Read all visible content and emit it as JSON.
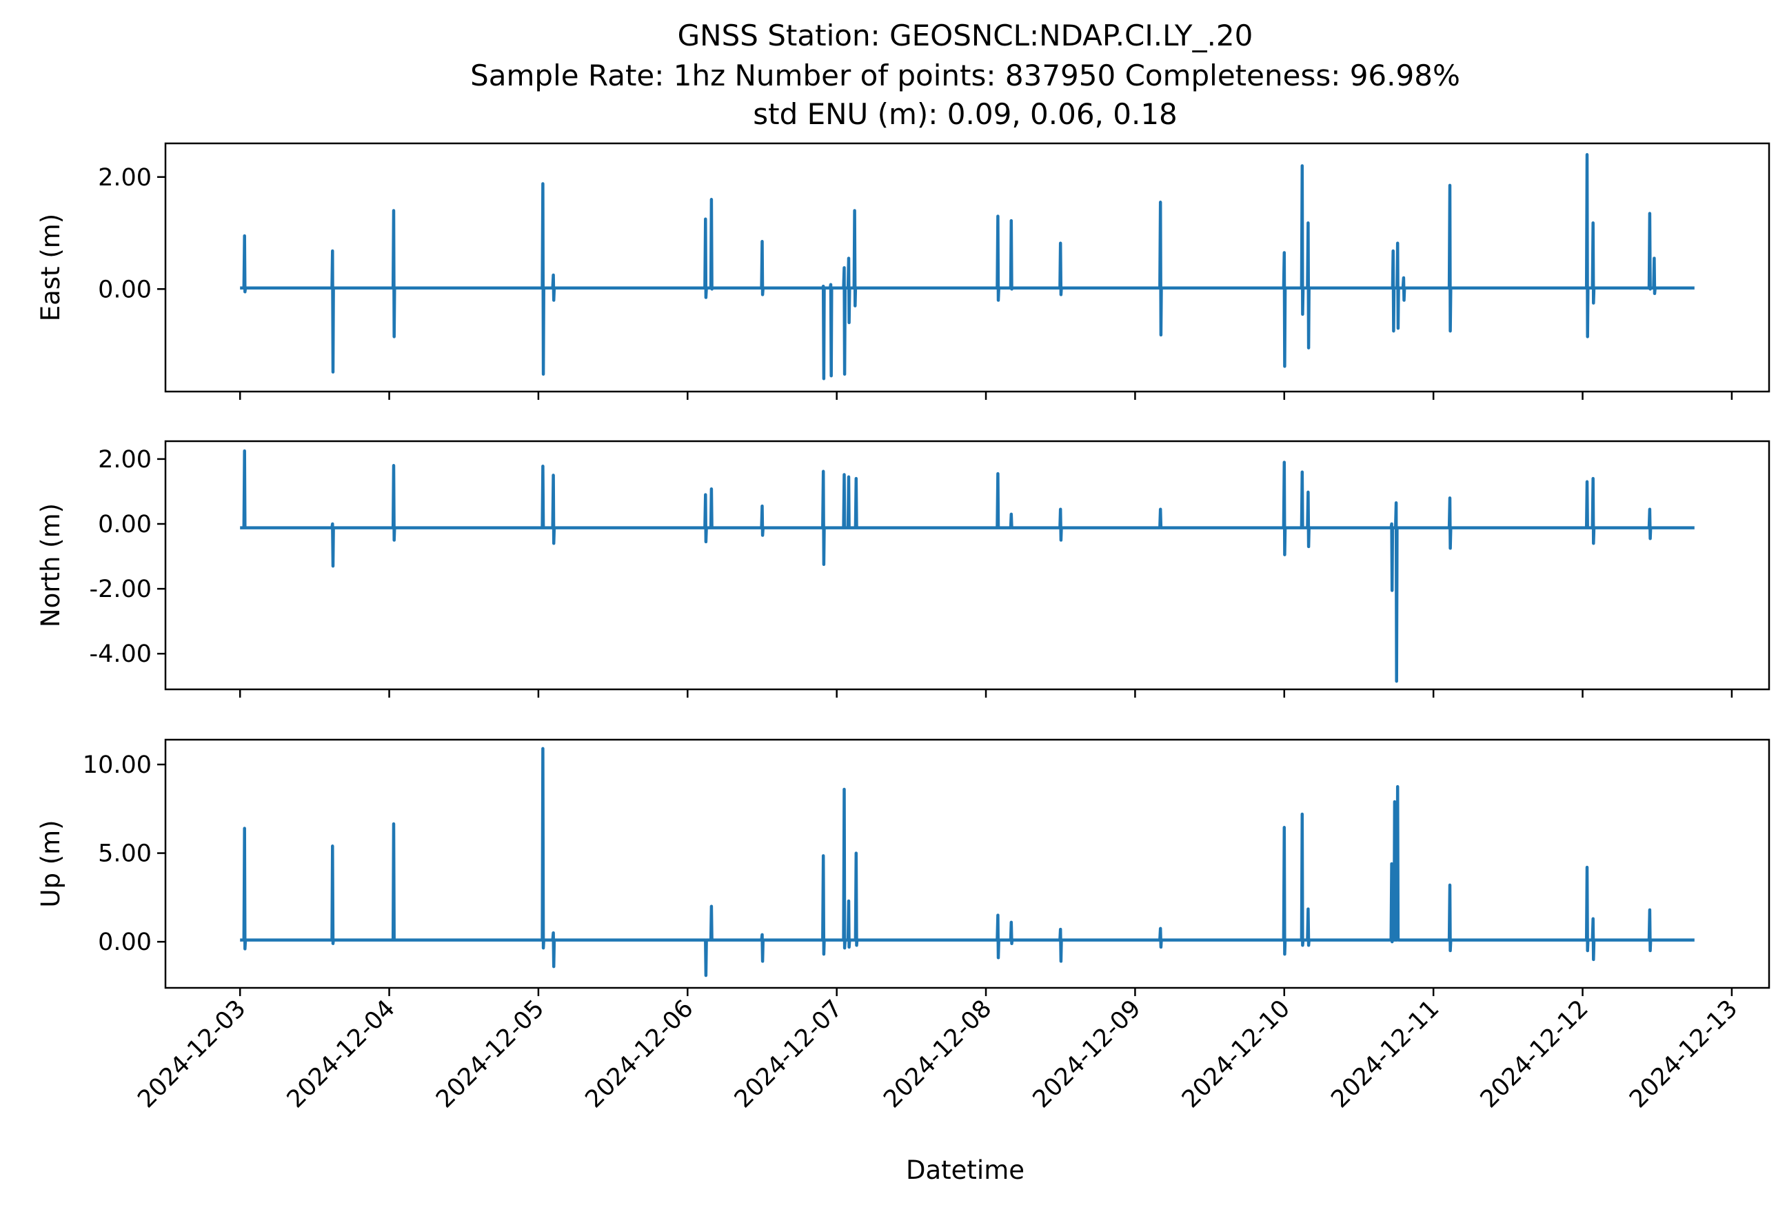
{
  "chart_data": {
    "type": "line",
    "title": [
      "GNSS Station: GEOSNCL:NDAP.CI.LY_.20",
      "Sample Rate: 1hz   Number of points: 837950    Completeness:  96.98%",
      "std ENU (m):  0.09, 0.06, 0.18"
    ],
    "xlabel": "Datetime",
    "x_ticks": [
      "2024-12-03",
      "2024-12-04",
      "2024-12-05",
      "2024-12-06",
      "2024-12-07",
      "2024-12-08",
      "2024-12-09",
      "2024-12-10",
      "2024-12-11",
      "2024-12-12",
      "2024-12-13"
    ],
    "x_tick_days": [
      0,
      1,
      2,
      3,
      4,
      5,
      6,
      7,
      8,
      9,
      10
    ],
    "xlim_days": [
      -0.5,
      10.25
    ],
    "data_span_days": [
      0,
      9.75
    ],
    "line_color": "#1f77b4",
    "legend": "none",
    "grid": false,
    "panels": [
      {
        "ylabel": "East (m)",
        "ylim": [
          -1.83,
          2.6
        ],
        "y_ticks": [
          0,
          2
        ],
        "y_tick_labels": [
          "0.00",
          "2.00"
        ],
        "baseline": 0.02,
        "spikes": [
          [
            0.03,
            0.95,
            -0.05
          ],
          [
            0.62,
            0.68,
            -1.48
          ],
          [
            1.03,
            1.4,
            -0.85
          ],
          [
            2.03,
            1.88,
            -1.52
          ],
          [
            2.1,
            0.25,
            -0.2
          ],
          [
            3.12,
            1.25,
            -0.15
          ],
          [
            3.16,
            1.6,
            0.0
          ],
          [
            3.5,
            0.85,
            -0.1
          ],
          [
            3.91,
            0.05,
            -1.6
          ],
          [
            3.96,
            0.08,
            -1.55
          ],
          [
            4.05,
            0.38,
            -1.52
          ],
          [
            4.08,
            0.55,
            -0.6
          ],
          [
            4.12,
            1.4,
            -0.3
          ],
          [
            5.08,
            1.3,
            -0.2
          ],
          [
            5.17,
            1.22,
            0.0
          ],
          [
            5.5,
            0.82,
            -0.1
          ],
          [
            6.17,
            1.55,
            -0.82
          ],
          [
            7.0,
            0.65,
            -1.38
          ],
          [
            7.12,
            2.2,
            -0.45
          ],
          [
            7.16,
            1.18,
            -1.05
          ],
          [
            7.73,
            0.68,
            -0.75
          ],
          [
            7.76,
            0.82,
            -0.7
          ],
          [
            7.8,
            0.2,
            -0.2
          ],
          [
            8.11,
            1.85,
            -0.75
          ],
          [
            9.03,
            2.4,
            -0.85
          ],
          [
            9.07,
            1.18,
            -0.25
          ],
          [
            9.45,
            1.35,
            0.0
          ],
          [
            9.48,
            0.55,
            -0.08
          ]
        ]
      },
      {
        "ylabel": "North (m)",
        "ylim": [
          -5.1,
          2.55
        ],
        "y_ticks": [
          2,
          0,
          -2,
          -4
        ],
        "y_tick_labels": [
          "2.00",
          "0.00",
          "-2.00",
          "-4.00"
        ],
        "baseline": -0.12,
        "spikes": [
          [
            0.03,
            2.25,
            -0.12
          ],
          [
            0.62,
            0.0,
            -1.3
          ],
          [
            1.03,
            1.8,
            -0.5
          ],
          [
            2.03,
            1.78,
            -0.12
          ],
          [
            2.1,
            1.5,
            -0.6
          ],
          [
            3.12,
            0.9,
            -0.55
          ],
          [
            3.16,
            1.08,
            -0.12
          ],
          [
            3.5,
            0.55,
            -0.35
          ],
          [
            3.91,
            1.62,
            -1.25
          ],
          [
            4.05,
            1.52,
            -0.12
          ],
          [
            4.08,
            1.45,
            -0.12
          ],
          [
            4.13,
            1.4,
            -0.12
          ],
          [
            5.08,
            1.55,
            -0.12
          ],
          [
            5.17,
            0.3,
            -0.12
          ],
          [
            5.5,
            0.45,
            -0.5
          ],
          [
            6.17,
            0.45,
            -0.12
          ],
          [
            7.0,
            1.9,
            -0.95
          ],
          [
            7.12,
            1.6,
            -0.12
          ],
          [
            7.16,
            0.98,
            -0.7
          ],
          [
            7.72,
            0.0,
            -2.05
          ],
          [
            7.75,
            0.65,
            -4.85
          ],
          [
            8.11,
            0.8,
            -0.75
          ],
          [
            9.03,
            1.3,
            -0.12
          ],
          [
            9.07,
            1.4,
            -0.6
          ],
          [
            9.45,
            0.45,
            -0.45
          ]
        ]
      },
      {
        "ylabel": "Up (m)",
        "ylim": [
          -2.6,
          11.4
        ],
        "y_ticks": [
          0,
          5,
          10
        ],
        "y_tick_labels": [
          "0.00",
          "5.00",
          "10.00"
        ],
        "baseline": 0.1,
        "spikes": [
          [
            0.03,
            6.4,
            -0.4
          ],
          [
            0.62,
            5.4,
            -0.1
          ],
          [
            1.03,
            6.65,
            0.1
          ],
          [
            2.03,
            10.9,
            -0.35
          ],
          [
            2.1,
            0.5,
            -1.4
          ],
          [
            3.12,
            0.1,
            -1.9
          ],
          [
            3.16,
            2.0,
            0.1
          ],
          [
            3.5,
            0.4,
            -1.1
          ],
          [
            3.91,
            4.85,
            -0.7
          ],
          [
            4.05,
            8.6,
            -0.35
          ],
          [
            4.08,
            2.3,
            -0.3
          ],
          [
            4.13,
            5.0,
            -0.2
          ],
          [
            5.08,
            1.5,
            -0.9
          ],
          [
            5.17,
            1.1,
            -0.1
          ],
          [
            5.5,
            0.7,
            -1.1
          ],
          [
            6.17,
            0.75,
            -0.3
          ],
          [
            7.0,
            6.45,
            -0.7
          ],
          [
            7.12,
            7.2,
            -0.2
          ],
          [
            7.16,
            1.85,
            -0.2
          ],
          [
            7.72,
            4.4,
            0.0
          ],
          [
            7.74,
            7.9,
            0.1
          ],
          [
            7.76,
            8.75,
            0.2
          ],
          [
            8.11,
            3.2,
            -0.5
          ],
          [
            9.03,
            4.2,
            -0.5
          ],
          [
            9.07,
            1.3,
            -1.0
          ],
          [
            9.45,
            1.8,
            -0.5
          ]
        ]
      }
    ]
  }
}
